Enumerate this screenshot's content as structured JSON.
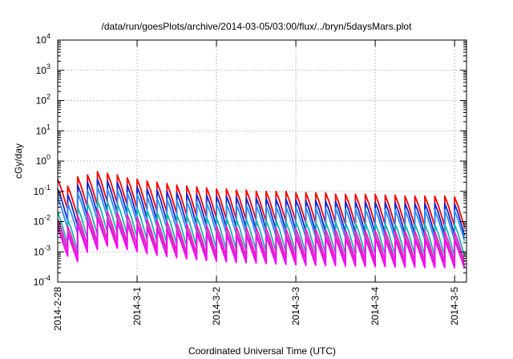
{
  "chart_data": {
    "type": "line",
    "title": "/data/run/goesPlots/archive/2014-03-05/03:00/flux/../bryn/5daysMars.plot",
    "xlabel": "Coordinated Universal Time (UTC)",
    "ylabel": "cGy/day",
    "y_scale": "log",
    "ylim_exponents": [
      -4,
      4
    ],
    "y_tick_labels": [
      {
        "base": "10",
        "exp": "-4"
      },
      {
        "base": "10",
        "exp": "-3"
      },
      {
        "base": "10",
        "exp": "-2"
      },
      {
        "base": "10",
        "exp": "-1"
      },
      {
        "base": "10",
        "exp": "0"
      },
      {
        "base": "10",
        "exp": "1"
      },
      {
        "base": "10",
        "exp": "2"
      },
      {
        "base": "10",
        "exp": "3"
      },
      {
        "base": "10",
        "exp": "4"
      }
    ],
    "x_tick_labels": [
      "2014-2-28",
      "2014-3-1",
      "2014-3-2",
      "2014-3-3",
      "2014-3-4",
      "2014-3-5"
    ],
    "xlim_days": [
      0,
      5.15
    ],
    "grid": true,
    "sawtooth_period_hours": 3,
    "series": [
      {
        "color": "#ff0000",
        "peak": [
          0.25,
          0.15,
          0.3,
          0.35,
          0.45,
          0.4,
          0.35,
          0.28,
          0.25,
          0.22,
          0.2,
          0.18,
          0.16,
          0.15,
          0.14,
          0.13,
          0.12,
          0.12,
          0.11,
          0.11,
          0.1,
          0.1,
          0.1,
          0.1,
          0.09,
          0.09,
          0.09,
          0.09,
          0.08,
          0.08,
          0.08,
          0.08,
          0.08,
          0.075,
          0.075,
          0.07,
          0.07,
          0.07,
          0.07,
          0.07,
          0.065
        ],
        "decay": 0.1
      },
      {
        "color": "#1428c8",
        "peak": [
          0.12,
          0.08,
          0.16,
          0.2,
          0.25,
          0.22,
          0.2,
          0.16,
          0.14,
          0.12,
          0.11,
          0.1,
          0.09,
          0.085,
          0.08,
          0.075,
          0.07,
          0.07,
          0.065,
          0.06,
          0.06,
          0.058,
          0.055,
          0.055,
          0.052,
          0.05,
          0.05,
          0.048,
          0.047,
          0.046,
          0.045,
          0.045,
          0.044,
          0.043,
          0.042,
          0.041,
          0.04,
          0.04,
          0.04,
          0.04,
          0.038
        ],
        "decay": 0.09
      },
      {
        "color": "#2a8cff",
        "peak": [
          0.06,
          0.04,
          0.09,
          0.11,
          0.14,
          0.12,
          0.11,
          0.09,
          0.08,
          0.07,
          0.06,
          0.055,
          0.05,
          0.047,
          0.045,
          0.042,
          0.04,
          0.039,
          0.037,
          0.035,
          0.034,
          0.033,
          0.032,
          0.031,
          0.03,
          0.03,
          0.029,
          0.028,
          0.028,
          0.027,
          0.027,
          0.026,
          0.026,
          0.025,
          0.025,
          0.025,
          0.024,
          0.024,
          0.024,
          0.024,
          0.023
        ],
        "decay": 0.1
      },
      {
        "color": "#1ab4b4",
        "peak": [
          0.02,
          0.012,
          0.03,
          0.04,
          0.05,
          0.045,
          0.04,
          0.033,
          0.028,
          0.024,
          0.021,
          0.019,
          0.017,
          0.016,
          0.015,
          0.014,
          0.013,
          0.013,
          0.012,
          0.012,
          0.011,
          0.011,
          0.011,
          0.01,
          0.01,
          0.01,
          0.0098,
          0.0096,
          0.0094,
          0.0092,
          0.009,
          0.009,
          0.0088,
          0.0086,
          0.0085,
          0.0084,
          0.0083,
          0.0082,
          0.0081,
          0.008,
          0.008
        ],
        "decay": 0.09
      },
      {
        "color": "#ff14c8",
        "peak": [
          0.012,
          0.007,
          0.016,
          0.02,
          0.025,
          0.022,
          0.02,
          0.017,
          0.014,
          0.012,
          0.011,
          0.01,
          0.009,
          0.0085,
          0.008,
          0.0076,
          0.0072,
          0.007,
          0.0067,
          0.0065,
          0.0063,
          0.0061,
          0.006,
          0.0058,
          0.0057,
          0.0056,
          0.0055,
          0.0054,
          0.0053,
          0.0052,
          0.0051,
          0.005,
          0.005,
          0.0049,
          0.0048,
          0.0048,
          0.0047,
          0.0047,
          0.0046,
          0.0046,
          0.0045
        ],
        "decay": 0.1
      },
      {
        "color": "#aa50aa",
        "peak": [
          0.008,
          0.005,
          0.011,
          0.014,
          0.017,
          0.015,
          0.014,
          0.011,
          0.0095,
          0.0085,
          0.0077,
          0.007,
          0.0064,
          0.006,
          0.0057,
          0.0054,
          0.0051,
          0.0049,
          0.0047,
          0.0046,
          0.0044,
          0.0043,
          0.0042,
          0.0041,
          0.004,
          0.0039,
          0.0039,
          0.0038,
          0.0037,
          0.0037,
          0.0036,
          0.0036,
          0.0035,
          0.0035,
          0.0034,
          0.0034,
          0.0033,
          0.0033,
          0.0033,
          0.0032,
          0.0032
        ],
        "decay": 0.1
      },
      {
        "color": "#ff00ff",
        "peak": [
          0.006,
          0.004,
          0.008,
          0.01,
          0.013,
          0.011,
          0.01,
          0.0085,
          0.0072,
          0.0064,
          0.0058,
          0.0053,
          0.0049,
          0.0046,
          0.0043,
          0.0041,
          0.0039,
          0.0037,
          0.0036,
          0.0035,
          0.0034,
          0.0033,
          0.0032,
          0.0031,
          0.003,
          0.003,
          0.0029,
          0.0029,
          0.0028,
          0.0028,
          0.0027,
          0.0027,
          0.0027,
          0.0026,
          0.0026,
          0.0026,
          0.0025,
          0.0025,
          0.0025,
          0.0025,
          0.0024
        ],
        "decay": 0.12
      }
    ]
  }
}
